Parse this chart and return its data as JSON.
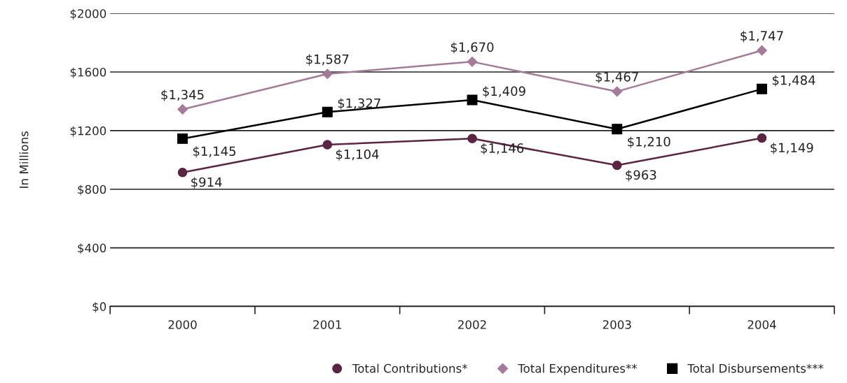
{
  "chart_data": {
    "type": "line",
    "ylabel": "In Millions",
    "categories": [
      "2000",
      "2001",
      "2002",
      "2003",
      "2004"
    ],
    "series": [
      {
        "name": "Total Contributions*",
        "color": "#5c2443",
        "marker": "circle",
        "values": [
          914,
          1104,
          1146,
          963,
          1149
        ],
        "value_labels": [
          "$914",
          "$1,104",
          "$1,146",
          "$963",
          "$1,149"
        ]
      },
      {
        "name": "Total Expenditures**",
        "color": "#a47b98",
        "marker": "diamond",
        "values": [
          1345,
          1587,
          1670,
          1467,
          1747
        ],
        "value_labels": [
          "$1,345",
          "$1,587",
          "$1,670",
          "$1,467",
          "$1,747"
        ]
      },
      {
        "name": "Total Disbursements***",
        "color": "#000000",
        "marker": "square",
        "values": [
          1145,
          1327,
          1409,
          1210,
          1484
        ],
        "value_labels": [
          "$1,145",
          "$1,327",
          "$1,409",
          "$1,210",
          "$1,484"
        ]
      }
    ],
    "ylim": [
      0,
      2000
    ],
    "yticks": [
      {
        "value": 0,
        "label": "$0"
      },
      {
        "value": 400,
        "label": "$400"
      },
      {
        "value": 800,
        "label": "$800"
      },
      {
        "value": 1200,
        "label": "$1200"
      },
      {
        "value": 1600,
        "label": "$1600"
      },
      {
        "value": 2000,
        "label": "$2000"
      }
    ],
    "grid": "y",
    "legend": "bottom"
  }
}
